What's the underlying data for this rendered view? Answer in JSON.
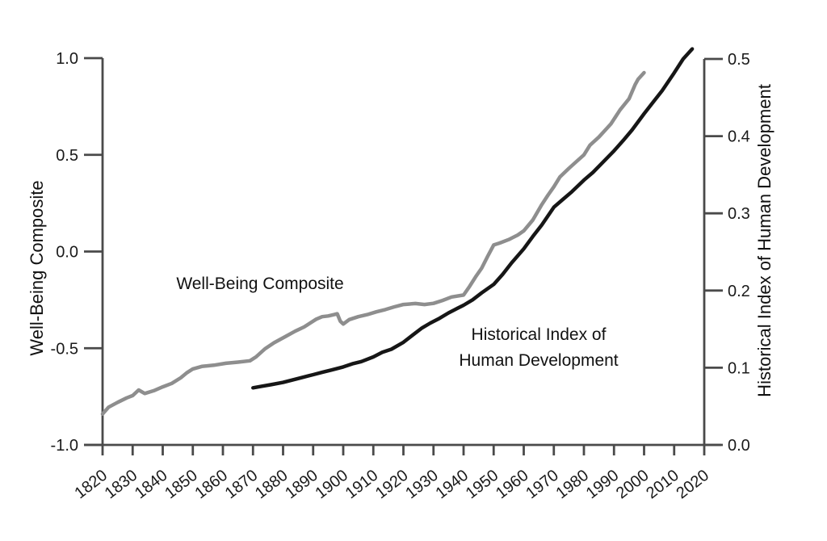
{
  "chart_data": {
    "type": "line",
    "title": "",
    "grid": false,
    "legend_position": "none",
    "colors": {
      "axis": "#4a4a4a",
      "text": "#1a1a1a",
      "wbc_line": "#8e8e8e",
      "hihd_line": "#161616"
    },
    "x_axis": {
      "range": [
        1820,
        2020
      ],
      "ticks": [
        1820,
        1830,
        1840,
        1850,
        1860,
        1870,
        1880,
        1890,
        1900,
        1910,
        1920,
        1930,
        1940,
        1950,
        1960,
        1970,
        1980,
        1990,
        2000,
        2010,
        2020
      ]
    },
    "left_axis": {
      "title": "Well-Being Composite",
      "range": [
        -1.0,
        1.0
      ],
      "tick_values": [
        1.0,
        0.5,
        0.0,
        -0.5,
        -1.0
      ],
      "tick_labels": [
        "1.0",
        "0.5",
        "0.0",
        "-0.5",
        "-1.0"
      ]
    },
    "right_axis": {
      "title": "Historical Index of Human Development",
      "range": [
        0.0,
        0.5
      ],
      "tick_values": [
        0.5,
        0.4,
        0.3,
        0.2,
        0.1,
        0.0
      ],
      "tick_labels": [
        "0.5",
        "0.4",
        "0.3",
        "0.2",
        "0.1",
        "0.0"
      ]
    },
    "series": [
      {
        "id": "well-being-composite",
        "name": "Well-Being Composite",
        "axis": "left",
        "color": "#8e8e8e",
        "points": [
          [
            1820,
            -0.84
          ],
          [
            1822,
            -0.805
          ],
          [
            1825,
            -0.78
          ],
          [
            1828,
            -0.757
          ],
          [
            1830,
            -0.745
          ],
          [
            1832,
            -0.716
          ],
          [
            1834,
            -0.734
          ],
          [
            1837,
            -0.72
          ],
          [
            1840,
            -0.7
          ],
          [
            1843,
            -0.682
          ],
          [
            1846,
            -0.653
          ],
          [
            1848,
            -0.627
          ],
          [
            1850,
            -0.607
          ],
          [
            1853,
            -0.594
          ],
          [
            1857,
            -0.588
          ],
          [
            1861,
            -0.578
          ],
          [
            1865,
            -0.572
          ],
          [
            1869,
            -0.565
          ],
          [
            1871,
            -0.545
          ],
          [
            1874,
            -0.503
          ],
          [
            1877,
            -0.472
          ],
          [
            1881,
            -0.438
          ],
          [
            1884,
            -0.412
          ],
          [
            1887,
            -0.39
          ],
          [
            1889,
            -0.37
          ],
          [
            1891,
            -0.35
          ],
          [
            1893,
            -0.337
          ],
          [
            1895,
            -0.333
          ],
          [
            1897,
            -0.326
          ],
          [
            1898,
            -0.322
          ],
          [
            1899,
            -0.36
          ],
          [
            1900,
            -0.375
          ],
          [
            1902,
            -0.352
          ],
          [
            1905,
            -0.337
          ],
          [
            1908,
            -0.326
          ],
          [
            1911,
            -0.312
          ],
          [
            1914,
            -0.3
          ],
          [
            1917,
            -0.286
          ],
          [
            1920,
            -0.274
          ],
          [
            1924,
            -0.269
          ],
          [
            1927,
            -0.274
          ],
          [
            1930,
            -0.268
          ],
          [
            1933,
            -0.253
          ],
          [
            1936,
            -0.235
          ],
          [
            1940,
            -0.225
          ],
          [
            1942,
            -0.18
          ],
          [
            1944,
            -0.131
          ],
          [
            1946,
            -0.086
          ],
          [
            1948,
            -0.025
          ],
          [
            1950,
            0.034
          ],
          [
            1952,
            0.044
          ],
          [
            1955,
            0.062
          ],
          [
            1958,
            0.085
          ],
          [
            1960,
            0.107
          ],
          [
            1963,
            0.163
          ],
          [
            1966,
            0.243
          ],
          [
            1968,
            0.29
          ],
          [
            1970,
            0.335
          ],
          [
            1972,
            0.385
          ],
          [
            1975,
            0.43
          ],
          [
            1978,
            0.472
          ],
          [
            1980,
            0.5
          ],
          [
            1982,
            0.55
          ],
          [
            1985,
            0.592
          ],
          [
            1989,
            0.66
          ],
          [
            1992,
            0.732
          ],
          [
            1995,
            0.79
          ],
          [
            1997,
            0.862
          ],
          [
            1998,
            0.89
          ],
          [
            2000,
            0.925
          ]
        ]
      },
      {
        "id": "hihd",
        "name": "Historical Index of Human Development",
        "axis": "right",
        "color": "#161616",
        "points": [
          [
            1870,
            0.074
          ],
          [
            1873,
            0.076
          ],
          [
            1876,
            0.078
          ],
          [
            1880,
            0.081
          ],
          [
            1883,
            0.084
          ],
          [
            1886,
            0.087
          ],
          [
            1890,
            0.091
          ],
          [
            1893,
            0.094
          ],
          [
            1896,
            0.097
          ],
          [
            1900,
            0.101
          ],
          [
            1903,
            0.105
          ],
          [
            1906,
            0.108
          ],
          [
            1910,
            0.114
          ],
          [
            1913,
            0.12
          ],
          [
            1916,
            0.124
          ],
          [
            1920,
            0.133
          ],
          [
            1923,
            0.142
          ],
          [
            1926,
            0.151
          ],
          [
            1929,
            0.158
          ],
          [
            1932,
            0.164
          ],
          [
            1935,
            0.171
          ],
          [
            1938,
            0.177
          ],
          [
            1940,
            0.181
          ],
          [
            1943,
            0.188
          ],
          [
            1946,
            0.197
          ],
          [
            1950,
            0.208
          ],
          [
            1953,
            0.221
          ],
          [
            1956,
            0.236
          ],
          [
            1960,
            0.254
          ],
          [
            1963,
            0.27
          ],
          [
            1966,
            0.285
          ],
          [
            1970,
            0.308
          ],
          [
            1973,
            0.318
          ],
          [
            1976,
            0.328
          ],
          [
            1980,
            0.343
          ],
          [
            1983,
            0.353
          ],
          [
            1986,
            0.365
          ],
          [
            1990,
            0.381
          ],
          [
            1993,
            0.394
          ],
          [
            1996,
            0.408
          ],
          [
            2000,
            0.429
          ],
          [
            2003,
            0.444
          ],
          [
            2006,
            0.459
          ],
          [
            2010,
            0.482
          ],
          [
            2013,
            0.5
          ],
          [
            2016,
            0.513
          ]
        ]
      }
    ],
    "annotations": {
      "wbc_label": "Well-Being Composite",
      "hihd_label": "Historical Index of\nHuman Development"
    }
  }
}
